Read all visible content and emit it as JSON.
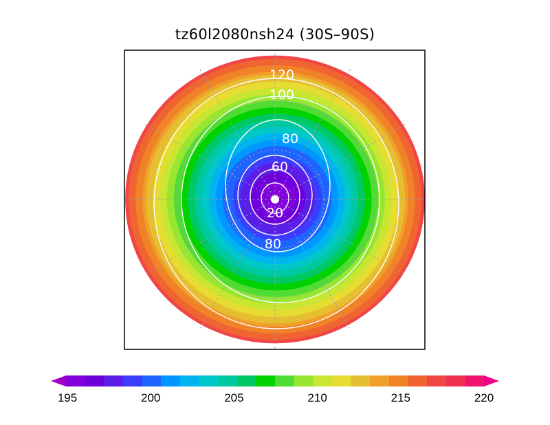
{
  "title": "tz60l2080nsh24 (30S–90S)",
  "map": {
    "projection": "polar-stereographic",
    "region": "30S-90S",
    "field_range": [
      195,
      220
    ],
    "pole_value": 195,
    "rim_value": 217,
    "contour_labels": [
      {
        "text": "120",
        "value": 120
      },
      {
        "text": "100",
        "value": 100
      },
      {
        "text": "80",
        "value": 80
      },
      {
        "text": "60",
        "value": 60
      },
      {
        "text": "20",
        "value": 20
      },
      {
        "text": "80",
        "value": 80
      }
    ]
  },
  "colorbar": {
    "min": 194,
    "max": 221,
    "tick_labels": [
      "195",
      "200",
      "205",
      "210",
      "215",
      "220"
    ],
    "tick_values": [
      195,
      200,
      205,
      210,
      215,
      220
    ],
    "colors": [
      "#a000c8",
      "#8200dc",
      "#6e00dc",
      "#5a1ee6",
      "#3c3cff",
      "#1e64ff",
      "#0096ff",
      "#00b4f0",
      "#00c8c8",
      "#00c8a0",
      "#00c864",
      "#00d200",
      "#50dc32",
      "#96e632",
      "#c8e632",
      "#e6dc32",
      "#e6be32",
      "#f0a028",
      "#f08228",
      "#f06432",
      "#f04646",
      "#f03250",
      "#f0146e",
      "#f00082"
    ]
  }
}
